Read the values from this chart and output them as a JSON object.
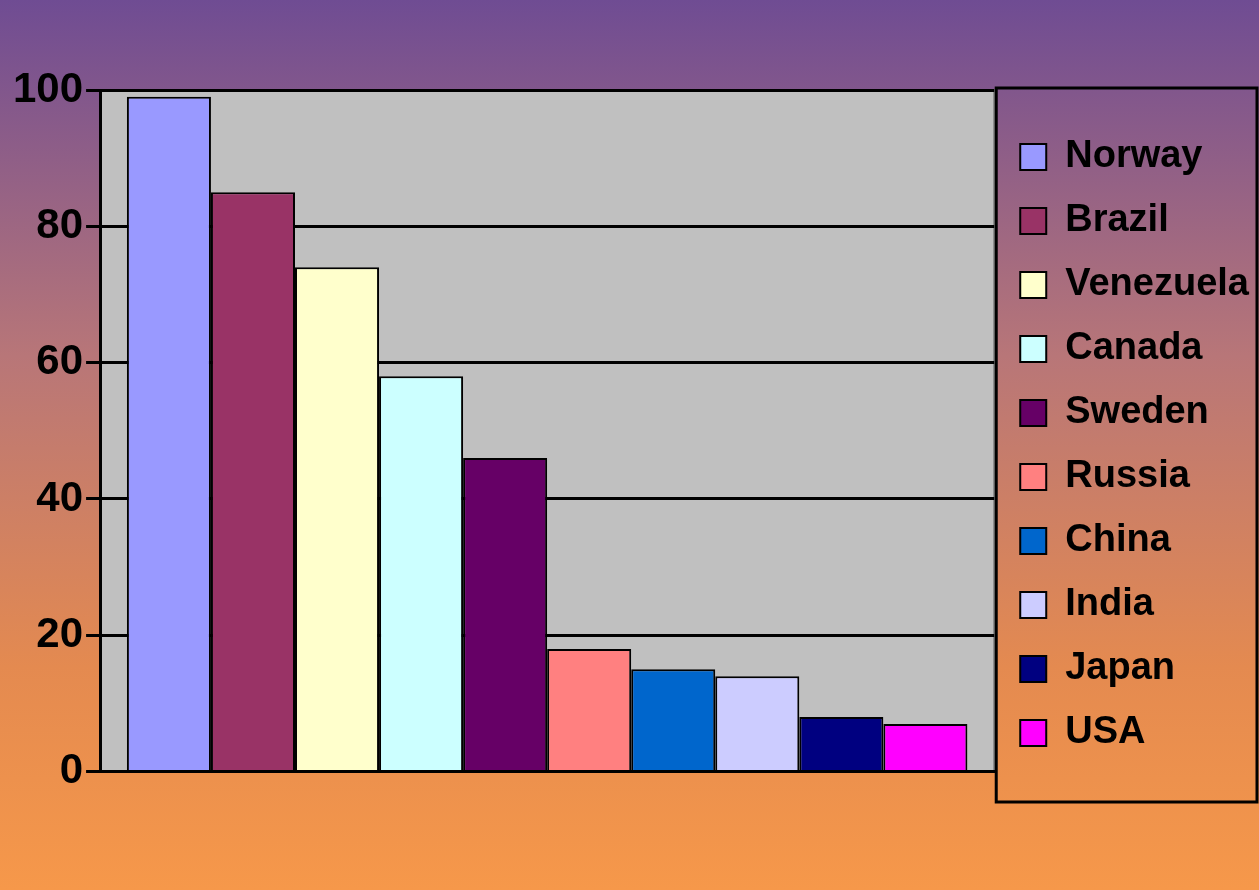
{
  "chart_data": {
    "type": "bar",
    "categories": [
      null
    ],
    "series": [
      {
        "name": "Norway",
        "color": "#9999ff",
        "values": [
          99
        ]
      },
      {
        "name": "Brazil",
        "color": "#993366",
        "values": [
          85
        ]
      },
      {
        "name": "Venezuela",
        "color": "#ffffcc",
        "values": [
          74
        ]
      },
      {
        "name": "Canada",
        "color": "#ccffff",
        "values": [
          58
        ]
      },
      {
        "name": "Sweden",
        "color": "#660066",
        "values": [
          46
        ]
      },
      {
        "name": "Russia",
        "color": "#ff8080",
        "values": [
          18
        ]
      },
      {
        "name": "China",
        "color": "#0066cc",
        "values": [
          15
        ]
      },
      {
        "name": "India",
        "color": "#ccccff",
        "values": [
          14
        ]
      },
      {
        "name": "Japan",
        "color": "#000080",
        "values": [
          8
        ]
      },
      {
        "name": "USA",
        "color": "#ff00ff",
        "values": [
          7
        ]
      }
    ],
    "ylim": [
      0,
      100
    ],
    "yticks": [
      0,
      20,
      40,
      60,
      80,
      100
    ],
    "grid": "y",
    "legend": "right"
  }
}
